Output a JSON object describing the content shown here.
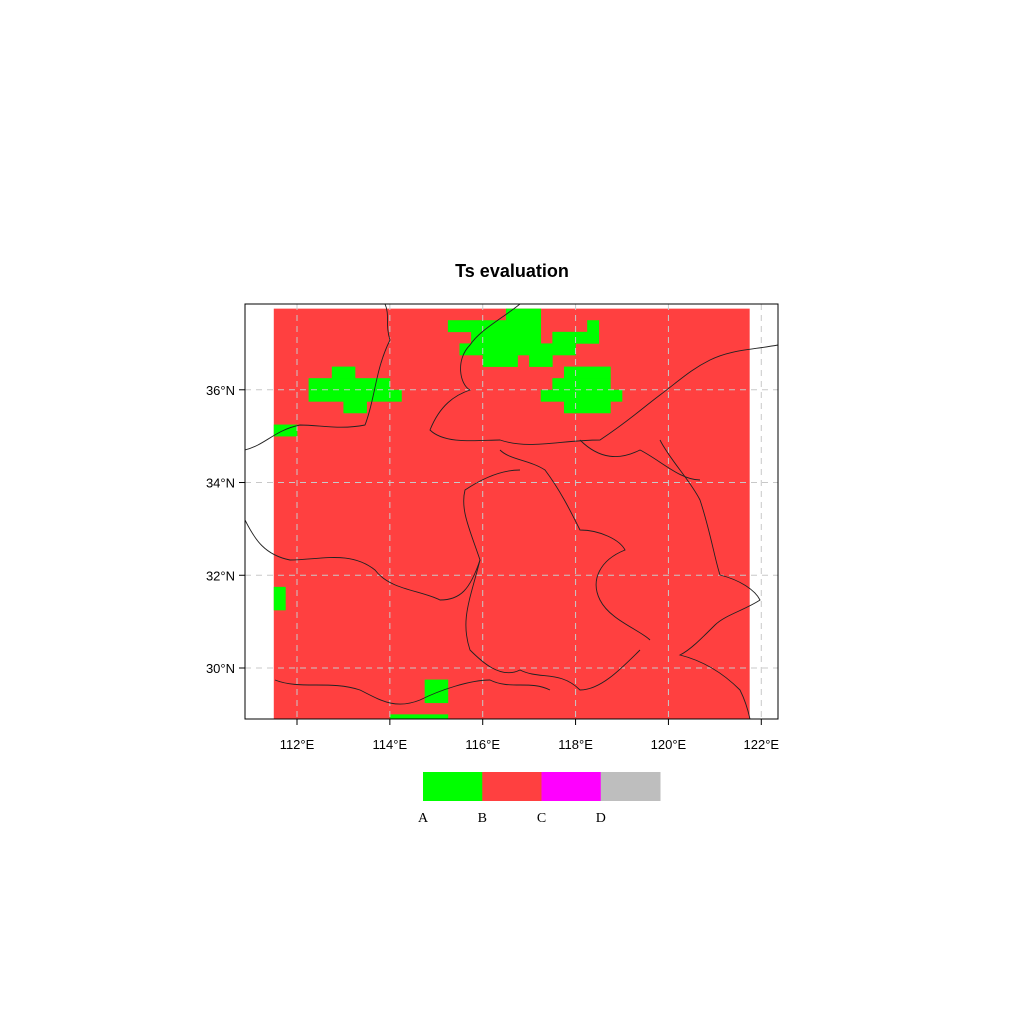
{
  "chart_data": {
    "type": "heatmap",
    "title": "Ts evaluation",
    "xlim": [
      110.88,
      122.36
    ],
    "ylim": [
      28.9,
      37.85
    ],
    "x_ticks": [
      {
        "value": 112,
        "label": "112°E"
      },
      {
        "value": 114,
        "label": "114°E"
      },
      {
        "value": 116,
        "label": "116°E"
      },
      {
        "value": 118,
        "label": "118°E"
      },
      {
        "value": 120,
        "label": "120°E"
      },
      {
        "value": 122,
        "label": "122°E"
      }
    ],
    "y_ticks": [
      {
        "value": 36,
        "label": "36°N"
      },
      {
        "value": 34,
        "label": "34°N"
      },
      {
        "value": 32,
        "label": "32°N"
      },
      {
        "value": 30,
        "label": "30°N"
      }
    ],
    "grid": true,
    "grid_resolution_deg": 0.25,
    "background_category": "B",
    "background_extent": {
      "lon": [
        111.5,
        121.75
      ],
      "lat": [
        28.75,
        37.75
      ]
    },
    "category_A_regions": [
      {
        "lon": [
          116.5,
          117.25
        ],
        "lat": [
          37.5,
          37.75
        ]
      },
      {
        "lon": [
          115.25,
          117.25
        ],
        "lat": [
          37.25,
          37.5
        ]
      },
      {
        "lon": [
          118.25,
          118.5
        ],
        "lat": [
          37.25,
          37.5
        ]
      },
      {
        "lon": [
          115.75,
          117.25
        ],
        "lat": [
          37.0,
          37.25
        ]
      },
      {
        "lon": [
          117.5,
          118.5
        ],
        "lat": [
          37.0,
          37.25
        ]
      },
      {
        "lon": [
          115.5,
          118.0
        ],
        "lat": [
          36.75,
          37.0
        ]
      },
      {
        "lon": [
          116.0,
          116.75
        ],
        "lat": [
          36.5,
          36.75
        ]
      },
      {
        "lon": [
          117.0,
          117.5
        ],
        "lat": [
          36.5,
          36.75
        ]
      },
      {
        "lon": [
          117.75,
          118.75
        ],
        "lat": [
          36.25,
          36.5
        ]
      },
      {
        "lon": [
          117.5,
          118.75
        ],
        "lat": [
          36.0,
          36.25
        ]
      },
      {
        "lon": [
          117.25,
          119.0
        ],
        "lat": [
          35.75,
          36.0
        ]
      },
      {
        "lon": [
          117.75,
          118.75
        ],
        "lat": [
          35.5,
          35.75
        ]
      },
      {
        "lon": [
          112.75,
          113.25
        ],
        "lat": [
          36.25,
          36.5
        ]
      },
      {
        "lon": [
          112.25,
          114.0
        ],
        "lat": [
          35.75,
          36.25
        ]
      },
      {
        "lon": [
          114.0,
          114.25
        ],
        "lat": [
          35.75,
          36.0
        ]
      },
      {
        "lon": [
          113.0,
          113.5
        ],
        "lat": [
          35.5,
          35.75
        ]
      },
      {
        "lon": [
          111.5,
          112.0
        ],
        "lat": [
          35.0,
          35.25
        ]
      },
      {
        "lon": [
          111.5,
          111.75
        ],
        "lat": [
          31.25,
          31.75
        ]
      },
      {
        "lon": [
          114.75,
          115.25
        ],
        "lat": [
          29.25,
          29.75
        ]
      },
      {
        "lon": [
          114.0,
          115.25
        ],
        "lat": [
          28.75,
          29.0
        ]
      }
    ],
    "legend": {
      "placement": "bottom",
      "categories": [
        {
          "label": "A",
          "color": "#00ff00"
        },
        {
          "label": "B",
          "color": "#ff4040"
        },
        {
          "label": "C",
          "color": "#ff00ff"
        },
        {
          "label": "D",
          "color": "#bebebe"
        }
      ]
    }
  }
}
